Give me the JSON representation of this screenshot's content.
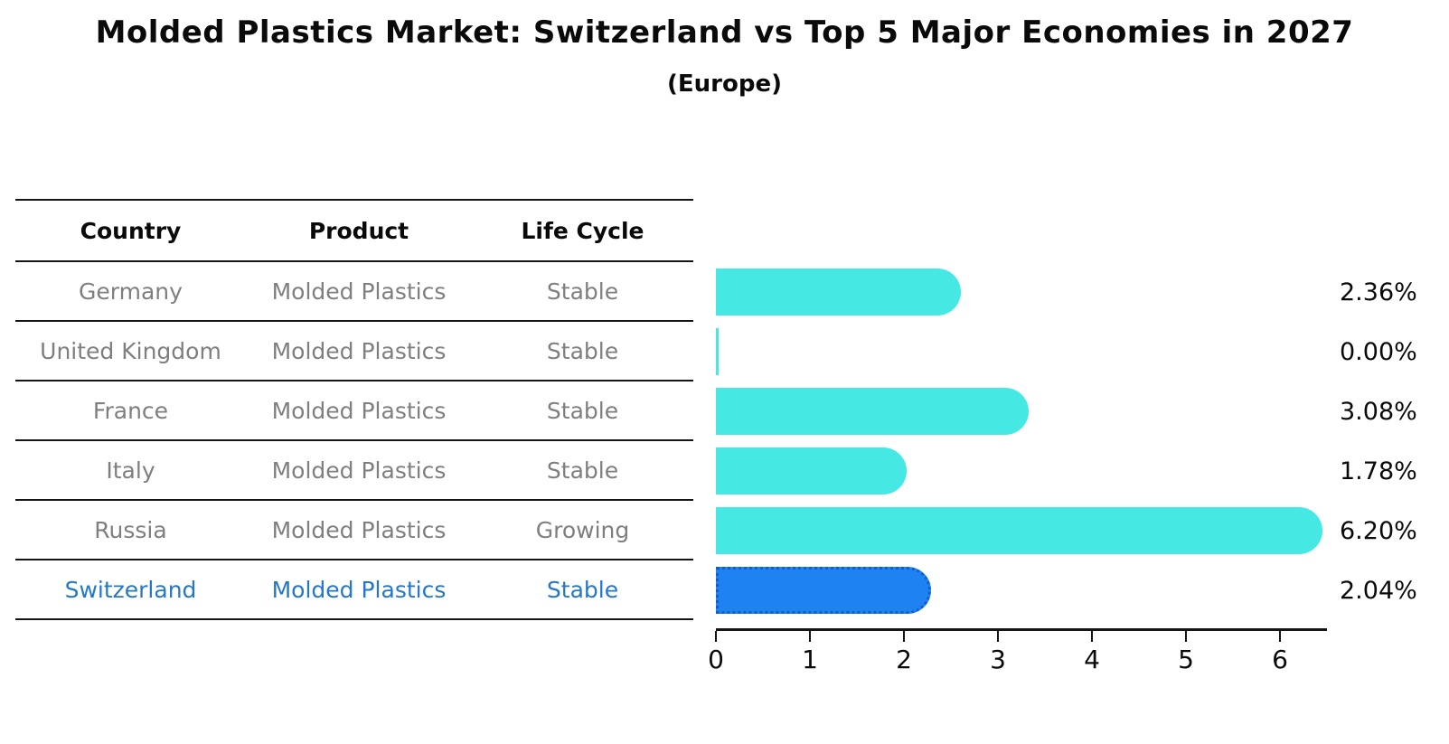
{
  "title": "Molded Plastics Market: Switzerland vs Top 5 Major Economies in 2027",
  "subtitle": "(Europe)",
  "table": {
    "headers": [
      "Country",
      "Product",
      "Life Cycle"
    ],
    "rows": [
      {
        "country": "Germany",
        "product": "Molded Plastics",
        "life_cycle": "Stable"
      },
      {
        "country": "United Kingdom",
        "product": "Molded Plastics",
        "life_cycle": "Stable"
      },
      {
        "country": "France",
        "product": "Molded Plastics",
        "life_cycle": "Stable"
      },
      {
        "country": "Italy",
        "product": "Molded Plastics",
        "life_cycle": "Stable"
      },
      {
        "country": "Russia",
        "product": "Molded Plastics",
        "life_cycle": "Growing"
      },
      {
        "country": "Switzerland",
        "product": "Molded Plastics",
        "life_cycle": "Stable"
      }
    ]
  },
  "chart_data": {
    "type": "bar",
    "orientation": "horizontal",
    "title": "Molded Plastics Market: Switzerland vs Top 5 Major Economies in 2027",
    "subtitle": "(Europe)",
    "categories": [
      "Germany",
      "United Kingdom",
      "France",
      "Italy",
      "Russia",
      "Switzerland"
    ],
    "values": [
      2.36,
      0.0,
      3.08,
      1.78,
      6.2,
      2.04
    ],
    "value_labels": [
      "2.36%",
      "0.00%",
      "3.08%",
      "1.78%",
      "6.20%",
      "2.04%"
    ],
    "xticks": [
      0,
      1,
      2,
      3,
      4,
      5,
      6
    ],
    "xlim": [
      0,
      6.5
    ],
    "grid": false,
    "legend": false,
    "highlight_index": 5
  },
  "colors": {
    "bar": "#46E8E4",
    "highlight_bar": "#1E82F0",
    "highlight_border": "#0d5fd0",
    "highlight_text": "#2577C9",
    "row_text": "#7f7f7f",
    "ink": "#0a0a0a"
  }
}
